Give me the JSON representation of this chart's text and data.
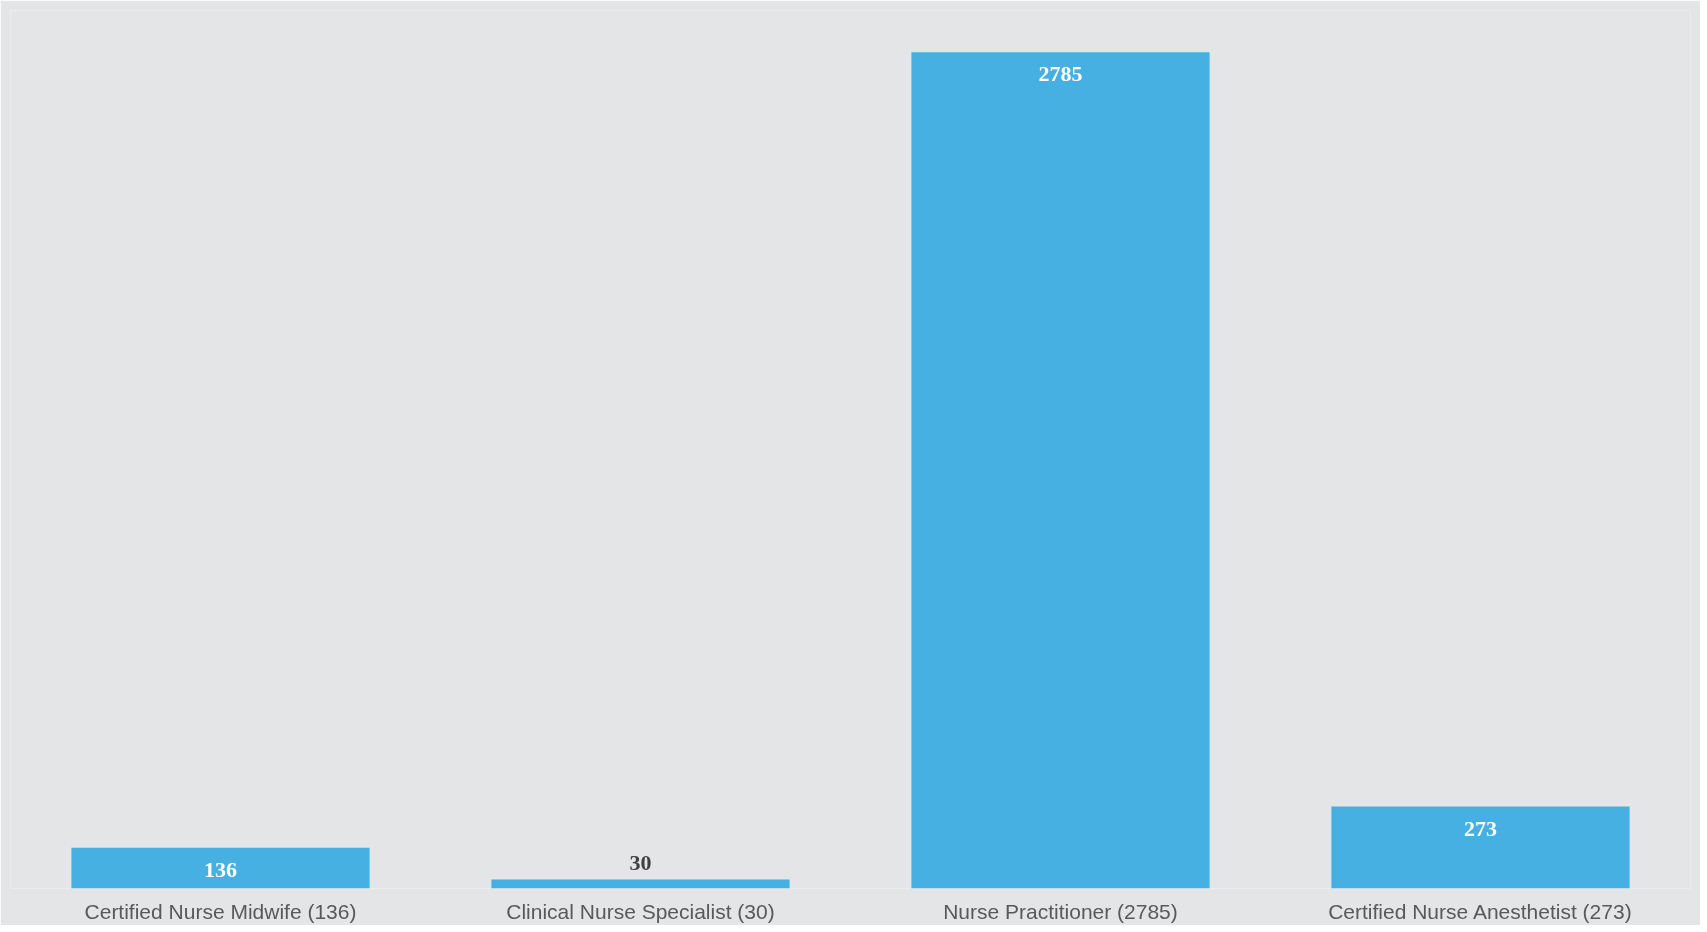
{
  "chart_data": {
    "type": "bar",
    "categories": [
      "Certified Nurse Midwife (136)",
      "Clinical Nurse Specialist (30)",
      "Nurse Practitioner (2785)",
      "Certified Nurse Anesthetist (273)"
    ],
    "values": [
      136,
      30,
      2785,
      273
    ],
    "color": "#45b0e1",
    "data_labels": true
  }
}
